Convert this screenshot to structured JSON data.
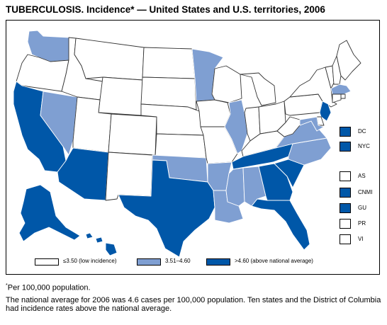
{
  "title": "TUBERCULOSIS. Incidence* — United States and U.S. territories, 2006",
  "colors": {
    "low": "#ffffff",
    "mid": "#7f9fd2",
    "high": "#0057a8",
    "outline": "#333333"
  },
  "legend": [
    {
      "label": "≤3.50 (low incidence)",
      "category": "low"
    },
    {
      "label": "3.51–4.60",
      "category": "mid"
    },
    {
      "label": ">4.60 (above national average)",
      "category": "high"
    }
  ],
  "territories": [
    {
      "code": "DC",
      "category": "high"
    },
    {
      "code": "NYC",
      "category": "high"
    },
    {
      "code": "AS",
      "category": "low"
    },
    {
      "code": "CNMI",
      "category": "high"
    },
    {
      "code": "GU",
      "category": "high"
    },
    {
      "code": "PR",
      "category": "low"
    },
    {
      "code": "VI",
      "category": "low"
    }
  ],
  "states": {
    "WA": "mid",
    "OR": "low",
    "CA": "high",
    "NV": "mid",
    "ID": "low",
    "MT": "low",
    "WY": "low",
    "UT": "low",
    "AZ": "high",
    "CO": "low",
    "NM": "low",
    "ND": "low",
    "SD": "low",
    "NE": "low",
    "KS": "low",
    "OK": "mid",
    "TX": "high",
    "MN": "mid",
    "IA": "low",
    "MO": "low",
    "AR": "mid",
    "LA": "mid",
    "WI": "low",
    "IL": "mid",
    "MI": "low",
    "IN": "low",
    "OH": "low",
    "KY": "low",
    "TN": "high",
    "MS": "mid",
    "AL": "mid",
    "GA": "high",
    "FL": "high",
    "SC": "high",
    "NC": "mid",
    "VA": "mid",
    "WV": "low",
    "PA": "low",
    "NY": "low",
    "VT": "low",
    "NH": "low",
    "ME": "low",
    "MA": "mid",
    "RI": "low",
    "CT": "low",
    "NJ": "high",
    "DE": "low",
    "MD": "mid",
    "AK": "high",
    "HI": "high"
  },
  "footnote": "Per 100,000 population.",
  "footnote_marker": "*",
  "note": "The national average for 2006 was 4.6 cases per 100,000 population. Ten states and the District of Columbia had incidence rates above the national average."
}
